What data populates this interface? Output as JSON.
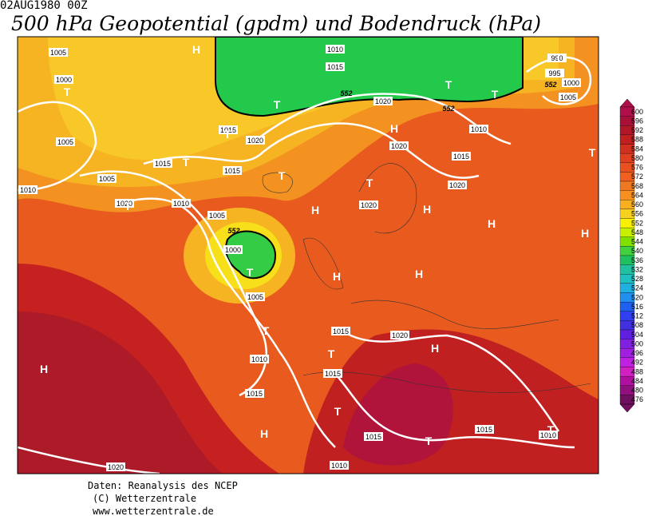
{
  "header": {
    "date": "02AUG1980 00Z",
    "title": "500 hPa Geopotential (gpdm) und Bodendruck (hPa)"
  },
  "colorbar": {
    "ticks": [
      600,
      596,
      592,
      588,
      584,
      580,
      576,
      572,
      568,
      564,
      560,
      556,
      552,
      548,
      544,
      540,
      536,
      532,
      528,
      524,
      520,
      516,
      512,
      508,
      504,
      500,
      496,
      492,
      488,
      484,
      480,
      476
    ]
  },
  "map": {
    "isobar_labels": [
      1005,
      1000,
      1005,
      1010,
      1015,
      1020,
      990,
      995,
      1000,
      1005,
      1010,
      1015,
      1020,
      1020,
      1020,
      1015,
      1020,
      1015,
      1015,
      1005,
      1010,
      1020,
      1010,
      1005,
      1000,
      1005,
      1010,
      1015,
      1015,
      1015,
      1015,
      1015,
      1010,
      1020,
      1010,
      1020
    ],
    "contour_labels": [
      552,
      552,
      552,
      552
    ],
    "pressure_centers": [
      "H",
      "T",
      "T",
      "T",
      "T",
      "T",
      "H",
      "T",
      "T",
      "T",
      "H",
      "T",
      "H",
      "H",
      "H",
      "T",
      "T",
      "H",
      "H",
      "T",
      "H",
      "T",
      "H",
      "T",
      "H",
      "T",
      "T",
      "T"
    ]
  },
  "footer": {
    "lines": [
      "Daten: Reanalysis des NCEP",
      "(C) Wetterzentrale",
      "www.wetterzentrale.de"
    ]
  }
}
